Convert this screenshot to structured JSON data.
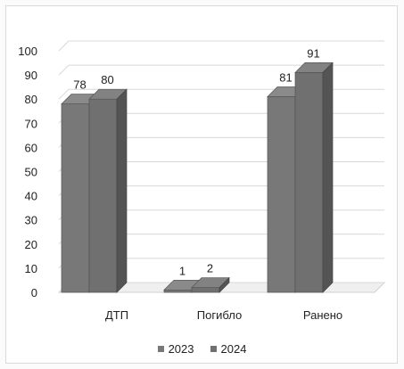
{
  "chart_data": {
    "type": "bar",
    "categories": [
      "ДТП",
      "Погибло",
      "Ранено"
    ],
    "series": [
      {
        "name": "2023",
        "values": [
          78,
          1,
          81
        ],
        "color": "#787878"
      },
      {
        "name": "2024",
        "values": [
          80,
          2,
          91
        ],
        "color": "#707070"
      }
    ],
    "ylim": [
      0,
      100
    ],
    "yticks": [
      "0",
      "10",
      "20",
      "30",
      "40",
      "50",
      "60",
      "70",
      "80",
      "90",
      "100"
    ],
    "grid": true,
    "legend_position": "bottom",
    "three_d": true,
    "data_labels": [
      "78",
      "80",
      "1",
      "2",
      "81",
      "91"
    ]
  }
}
